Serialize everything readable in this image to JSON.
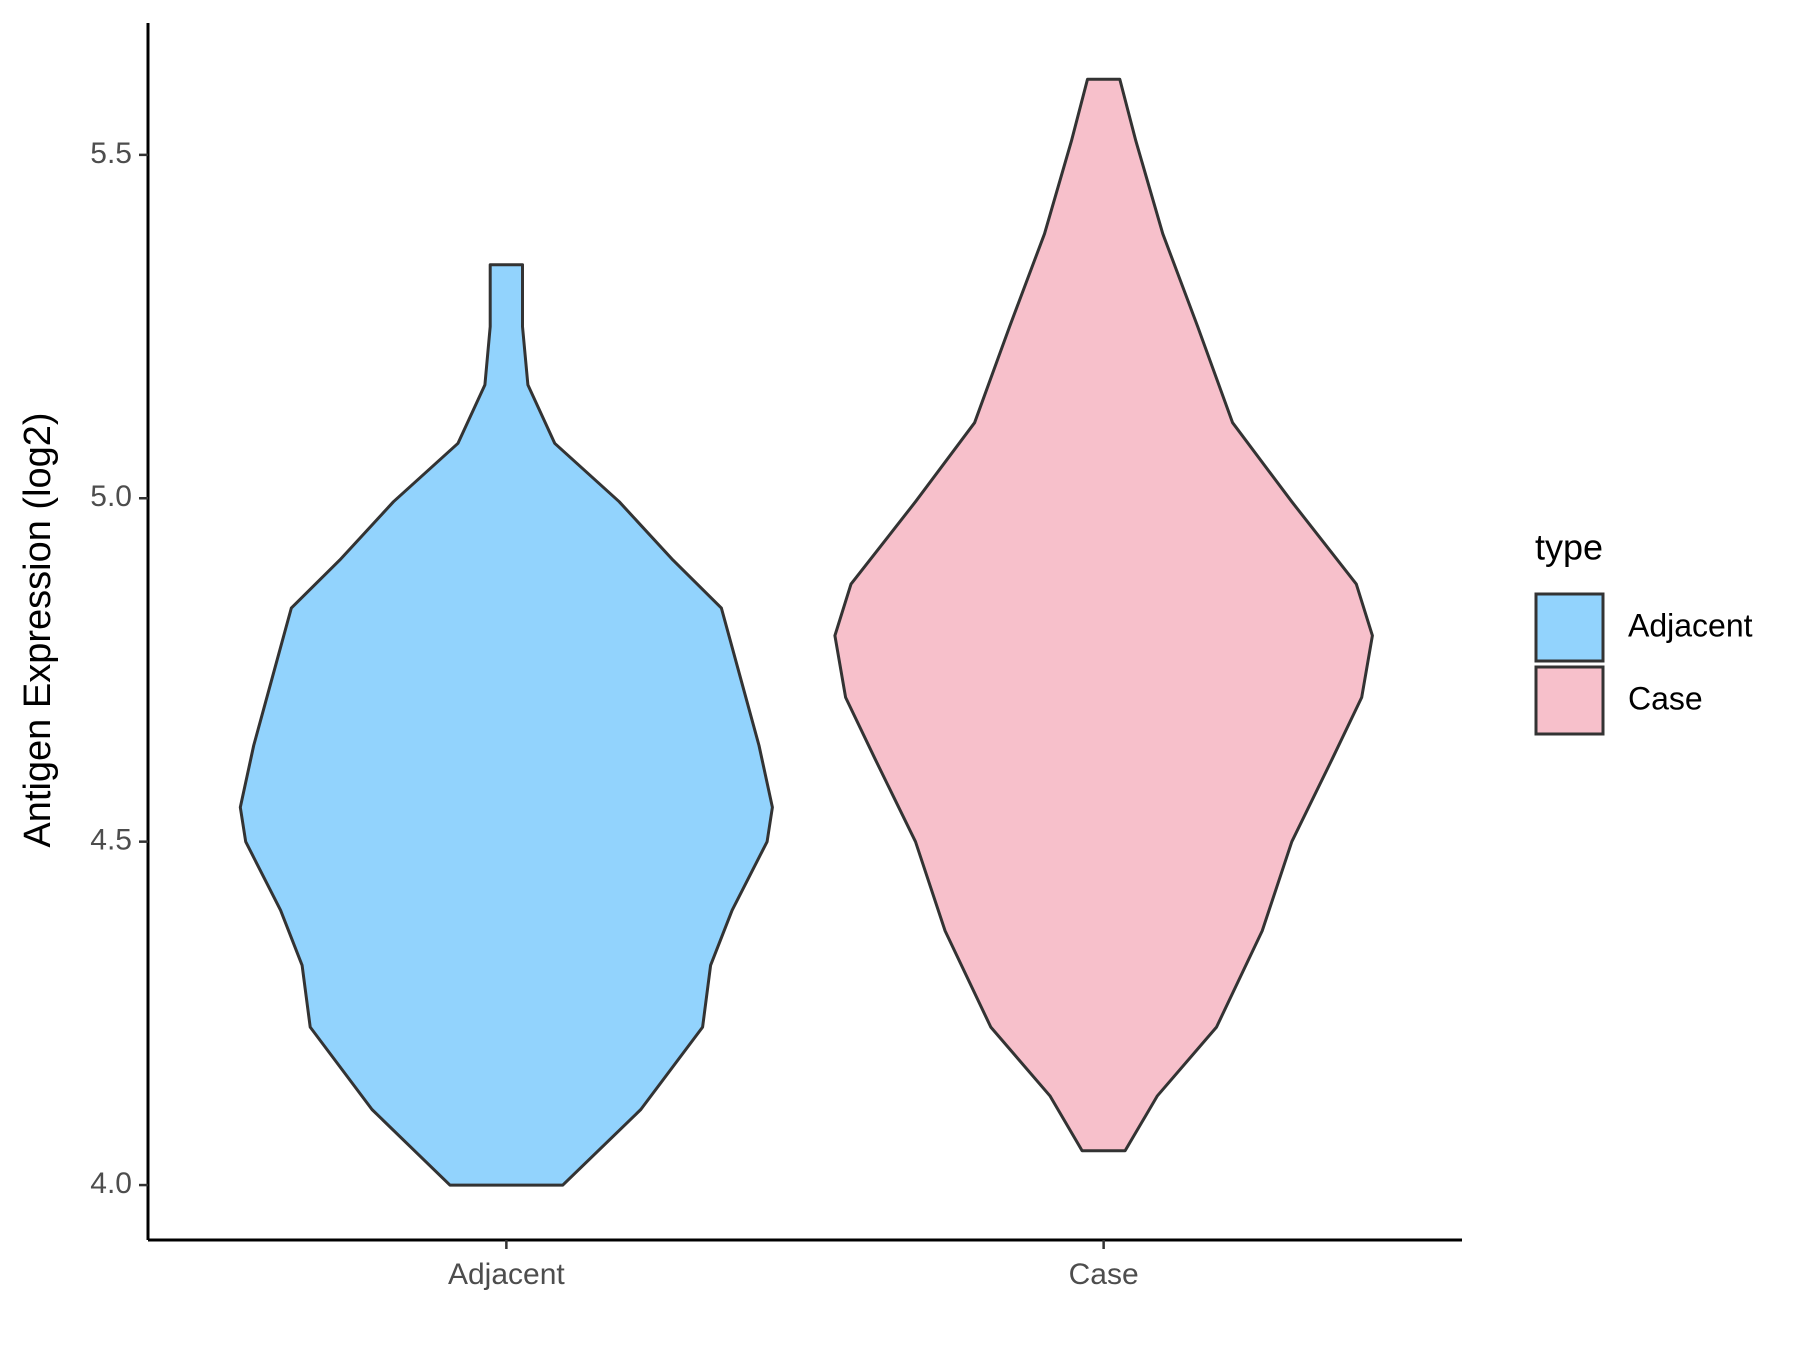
{
  "chart_data": {
    "type": "violin",
    "y_label": "Antigen Expression (log2)",
    "categories": [
      "Adjacent",
      "Case"
    ],
    "series": [
      {
        "name": "Adjacent",
        "color": "#92d3fd",
        "y": [
          4.0,
          4.11,
          4.23,
          4.32,
          4.4,
          4.5,
          4.55,
          4.64,
          4.74,
          4.84,
          4.91,
          4.995,
          5.08,
          5.165,
          5.25,
          5.34
        ],
        "width": [
          0.21,
          0.5,
          0.73,
          0.76,
          0.84,
          0.97,
          0.99,
          0.94,
          0.87,
          0.8,
          0.62,
          0.42,
          0.18,
          0.08,
          0.06,
          0.06
        ]
      },
      {
        "name": "Case",
        "color": "#f7c0cb",
        "y": [
          4.05,
          4.13,
          4.23,
          4.37,
          4.5,
          4.62,
          4.71,
          4.8,
          4.875,
          4.995,
          5.11,
          5.25,
          5.385,
          5.52,
          5.61
        ],
        "width": [
          0.08,
          0.2,
          0.42,
          0.59,
          0.7,
          0.85,
          0.96,
          1.0,
          0.94,
          0.7,
          0.48,
          0.35,
          0.22,
          0.12,
          0.06
        ]
      }
    ],
    "ylim": [
      3.92,
      5.692
    ],
    "yticks": [
      {
        "value": 4.0,
        "label": "4.0"
      },
      4.5,
      {
        "value": 5.0,
        "label": "5.0"
      },
      5.5
    ],
    "legend_title": "type",
    "legend_position": "right"
  }
}
